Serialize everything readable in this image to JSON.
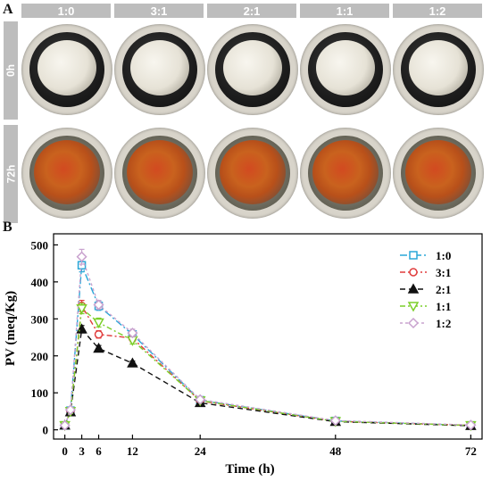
{
  "panel_a": {
    "letter": "A",
    "column_headers": [
      "1:0",
      "3:1",
      "2:1",
      "1:1",
      "1:2"
    ],
    "row_headers": [
      "0h",
      "72h"
    ]
  },
  "panel_b": {
    "letter": "B"
  },
  "chart_data": {
    "type": "line",
    "x": [
      0,
      1,
      3,
      6,
      12,
      24,
      48,
      72
    ],
    "xticks": [
      0,
      3,
      6,
      12,
      24,
      48,
      72
    ],
    "yticks": [
      0,
      100,
      200,
      300,
      400,
      500
    ],
    "xlabel": "Time (h)",
    "ylabel": "PV (meq/Kg)",
    "xlim": [
      -2,
      74
    ],
    "ylim": [
      -25,
      530
    ],
    "legend_position": "top-right",
    "series": [
      {
        "name": "1:0",
        "color": "#2aa7d8",
        "marker": "square",
        "dash": "8,3,2,3",
        "values": [
          12,
          52,
          445,
          335,
          258,
          80,
          24,
          12
        ],
        "errors": [
          3,
          6,
          18,
          12,
          10,
          4,
          3,
          2
        ]
      },
      {
        "name": "3:1",
        "color": "#e03c3c",
        "marker": "circle",
        "dash": "6,3,2,3",
        "values": [
          12,
          50,
          335,
          258,
          248,
          78,
          23,
          12
        ],
        "errors": [
          3,
          6,
          15,
          10,
          10,
          4,
          3,
          2
        ]
      },
      {
        "name": "2:1",
        "color": "#111111",
        "marker": "triangle-up",
        "dash": "6,4",
        "values": [
          12,
          48,
          272,
          220,
          180,
          73,
          22,
          11
        ],
        "errors": [
          3,
          5,
          10,
          8,
          6,
          4,
          3,
          2
        ]
      },
      {
        "name": "1:1",
        "color": "#7ccf2a",
        "marker": "triangle-down",
        "dash": "6,3,2,3",
        "values": [
          12,
          50,
          328,
          290,
          242,
          79,
          23,
          12
        ],
        "errors": [
          3,
          6,
          14,
          12,
          10,
          4,
          3,
          2
        ]
      },
      {
        "name": "1:2",
        "color": "#c9a3cf",
        "marker": "diamond",
        "dash": "3,3",
        "values": [
          12,
          54,
          468,
          338,
          262,
          82,
          25,
          13
        ],
        "errors": [
          3,
          6,
          20,
          12,
          10,
          4,
          3,
          2
        ]
      }
    ]
  }
}
